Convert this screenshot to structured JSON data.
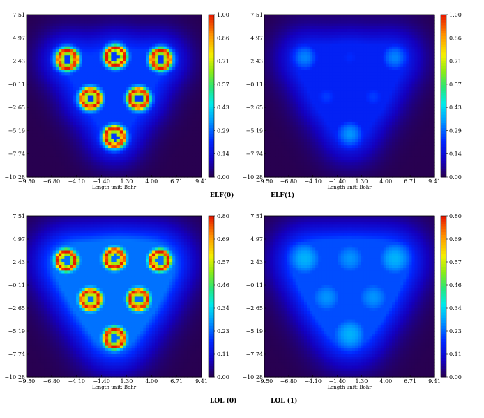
{
  "chart_data": [
    {
      "type": "heatmap",
      "title": "ELF(0)",
      "xlabel": "Length unit: Bohr",
      "xticks": [
        "−9.50",
        "−6.80",
        "−4.10",
        "−1.40",
        "1.30",
        "4.00",
        "6.71",
        "9.41"
      ],
      "yticks": [
        "7.51",
        "4.97",
        "2.43",
        "−0.11",
        "−2.65",
        "−5.19",
        "−7.74",
        "−10.28"
      ],
      "xlim": [
        -9.5,
        9.41
      ],
      "ylim": [
        -10.28,
        7.51
      ],
      "colorbar": {
        "range": [
          0,
          1.0
        ],
        "ticks": [
          "1.00",
          "0.86",
          "0.71",
          "0.57",
          "0.43",
          "0.29",
          "0.14",
          "0.00"
        ]
      },
      "maxima": [
        {
          "x": -5.1,
          "y": 2.6,
          "value": 1.0
        },
        {
          "x": 0.1,
          "y": 2.9,
          "value": 1.0
        },
        {
          "x": 5.0,
          "y": 2.6,
          "value": 1.0
        },
        {
          "x": -2.6,
          "y": -1.7,
          "value": 1.0
        },
        {
          "x": 2.6,
          "y": -1.7,
          "value": 1.0
        },
        {
          "x": 0.0,
          "y": -5.9,
          "value": 1.0
        }
      ]
    },
    {
      "type": "heatmap",
      "title": "ELF(1)",
      "xlabel": "Length unit: Bohr",
      "xticks": [
        "−9.50",
        "−6.80",
        "−4.10",
        "−1.40",
        "1.30",
        "4.00",
        "6.71",
        "9.41"
      ],
      "yticks": [
        "7.51",
        "4.97",
        "2.43",
        "−0.11",
        "−2.65",
        "−5.19",
        "−7.74",
        "−10.28"
      ],
      "xlim": [
        -9.5,
        9.41
      ],
      "ylim": [
        -10.28,
        7.51
      ],
      "colorbar": {
        "range": [
          0,
          1.0
        ],
        "ticks": [
          "1.00",
          "0.86",
          "0.71",
          "0.57",
          "0.43",
          "0.29",
          "0.14",
          "0.00"
        ]
      },
      "maxima": [
        {
          "x": -5.0,
          "y": 2.8,
          "value": 0.32
        },
        {
          "x": 5.0,
          "y": 2.8,
          "value": 0.32
        },
        {
          "x": 0.0,
          "y": -5.6,
          "value": 0.34
        },
        {
          "x": 0.0,
          "y": 2.8,
          "value": 0.22
        },
        {
          "x": -2.6,
          "y": -1.5,
          "value": 0.24
        },
        {
          "x": 2.6,
          "y": -1.5,
          "value": 0.24
        }
      ]
    },
    {
      "type": "heatmap",
      "title": "LOL (0)",
      "xlabel": "Length unit: Bohr",
      "xticks": [
        "−9.50",
        "−6.80",
        "−4.10",
        "−1.40",
        "1.30",
        "4.00",
        "6.71",
        "9.41"
      ],
      "yticks": [
        "7.51",
        "4.97",
        "2.43",
        "−0.11",
        "−2.65",
        "−5.19",
        "−7.74",
        "−10.28"
      ],
      "xlim": [
        -9.5,
        9.41
      ],
      "ylim": [
        -10.28,
        7.51
      ],
      "colorbar": {
        "range": [
          0,
          0.8
        ],
        "ticks": [
          "0.80",
          "0.69",
          "0.57",
          "0.46",
          "0.34",
          "0.23",
          "0.11",
          "0.00"
        ]
      },
      "maxima": [
        {
          "x": -5.2,
          "y": 2.6,
          "value": 0.8
        },
        {
          "x": 0.0,
          "y": 2.8,
          "value": 0.8
        },
        {
          "x": 4.9,
          "y": 2.6,
          "value": 0.8
        },
        {
          "x": -2.6,
          "y": -1.7,
          "value": 0.8
        },
        {
          "x": 2.6,
          "y": -1.7,
          "value": 0.8
        },
        {
          "x": 0.0,
          "y": -6.0,
          "value": 0.8
        }
      ]
    },
    {
      "type": "heatmap",
      "title": "LOL (1)",
      "xlabel": "Length unit: Bohr",
      "xticks": [
        "−9.50",
        "−6.80",
        "−4.10",
        "−1.40",
        "1.30",
        "4.00",
        "6.71",
        "9.41"
      ],
      "yticks": [
        "7.51",
        "4.97",
        "2.43",
        "−0.11",
        "−2.65",
        "−5.19",
        "−7.74",
        "−10.28"
      ],
      "xlim": [
        -9.5,
        9.41
      ],
      "ylim": [
        -10.28,
        7.51
      ],
      "colorbar": {
        "range": [
          0,
          0.8
        ],
        "ticks": [
          "0.80",
          "0.69",
          "0.57",
          "0.46",
          "0.34",
          "0.23",
          "0.11",
          "0.00"
        ]
      },
      "maxima": [
        {
          "x": -5.0,
          "y": 2.8,
          "value": 0.3
        },
        {
          "x": 0.0,
          "y": 2.8,
          "value": 0.27
        },
        {
          "x": 5.0,
          "y": 2.8,
          "value": 0.3
        },
        {
          "x": -2.6,
          "y": -1.5,
          "value": 0.27
        },
        {
          "x": 2.6,
          "y": -1.5,
          "value": 0.27
        },
        {
          "x": 0.0,
          "y": -5.6,
          "value": 0.3
        }
      ]
    }
  ]
}
